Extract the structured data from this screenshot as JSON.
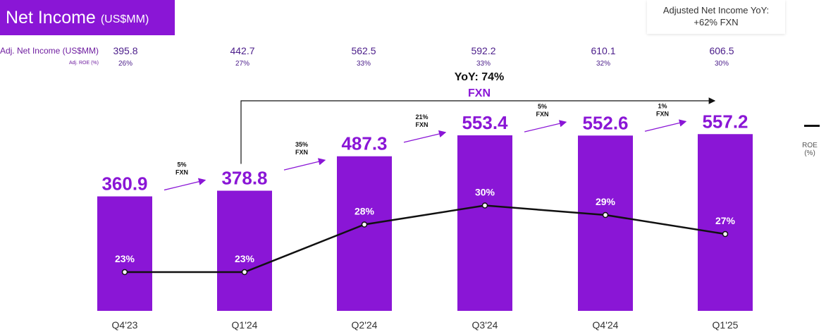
{
  "header": {
    "title": "Net Income",
    "title_unit": "(US$MM)",
    "callout_line1": "Adjusted Net Income YoY:",
    "callout_line2": "+62% FXN"
  },
  "colors": {
    "bar": "#8a16d6",
    "line": "#111111",
    "growth": "#8a16d6"
  },
  "summary": {
    "adj_label": "Adj. Net Income (US$MM)",
    "roe_label": "Adj. ROE (%)",
    "values": [
      {
        "adj": "395.8",
        "roe": "26%"
      },
      {
        "adj": "442.7",
        "roe": "27%"
      },
      {
        "adj": "562.5",
        "roe": "33%"
      },
      {
        "adj": "592.2",
        "roe": "33%"
      },
      {
        "adj": "610.1",
        "roe": "32%"
      },
      {
        "adj": "606.5",
        "roe": "30%"
      }
    ]
  },
  "yoy": {
    "line1": "YoY: 74%",
    "line2": "FXN"
  },
  "legend": {
    "line1": "ROE",
    "line2": "(%)"
  },
  "chart_data": {
    "type": "bar",
    "categories": [
      "Q4'23",
      "Q1'24",
      "Q2'24",
      "Q3'24",
      "Q4'24",
      "Q1'25"
    ],
    "series": [
      {
        "name": "",
        "values": [
          360.9,
          378.8,
          487.3,
          553.4,
          552.6,
          557.2
        ]
      }
    ],
    "roe": [
      23,
      23,
      28,
      30,
      29,
      27
    ],
    "growth": [
      "5%",
      "35%",
      "21%",
      "5%",
      "1%"
    ],
    "growth_suffix": "FXN",
    "title": "Net Income"
  }
}
